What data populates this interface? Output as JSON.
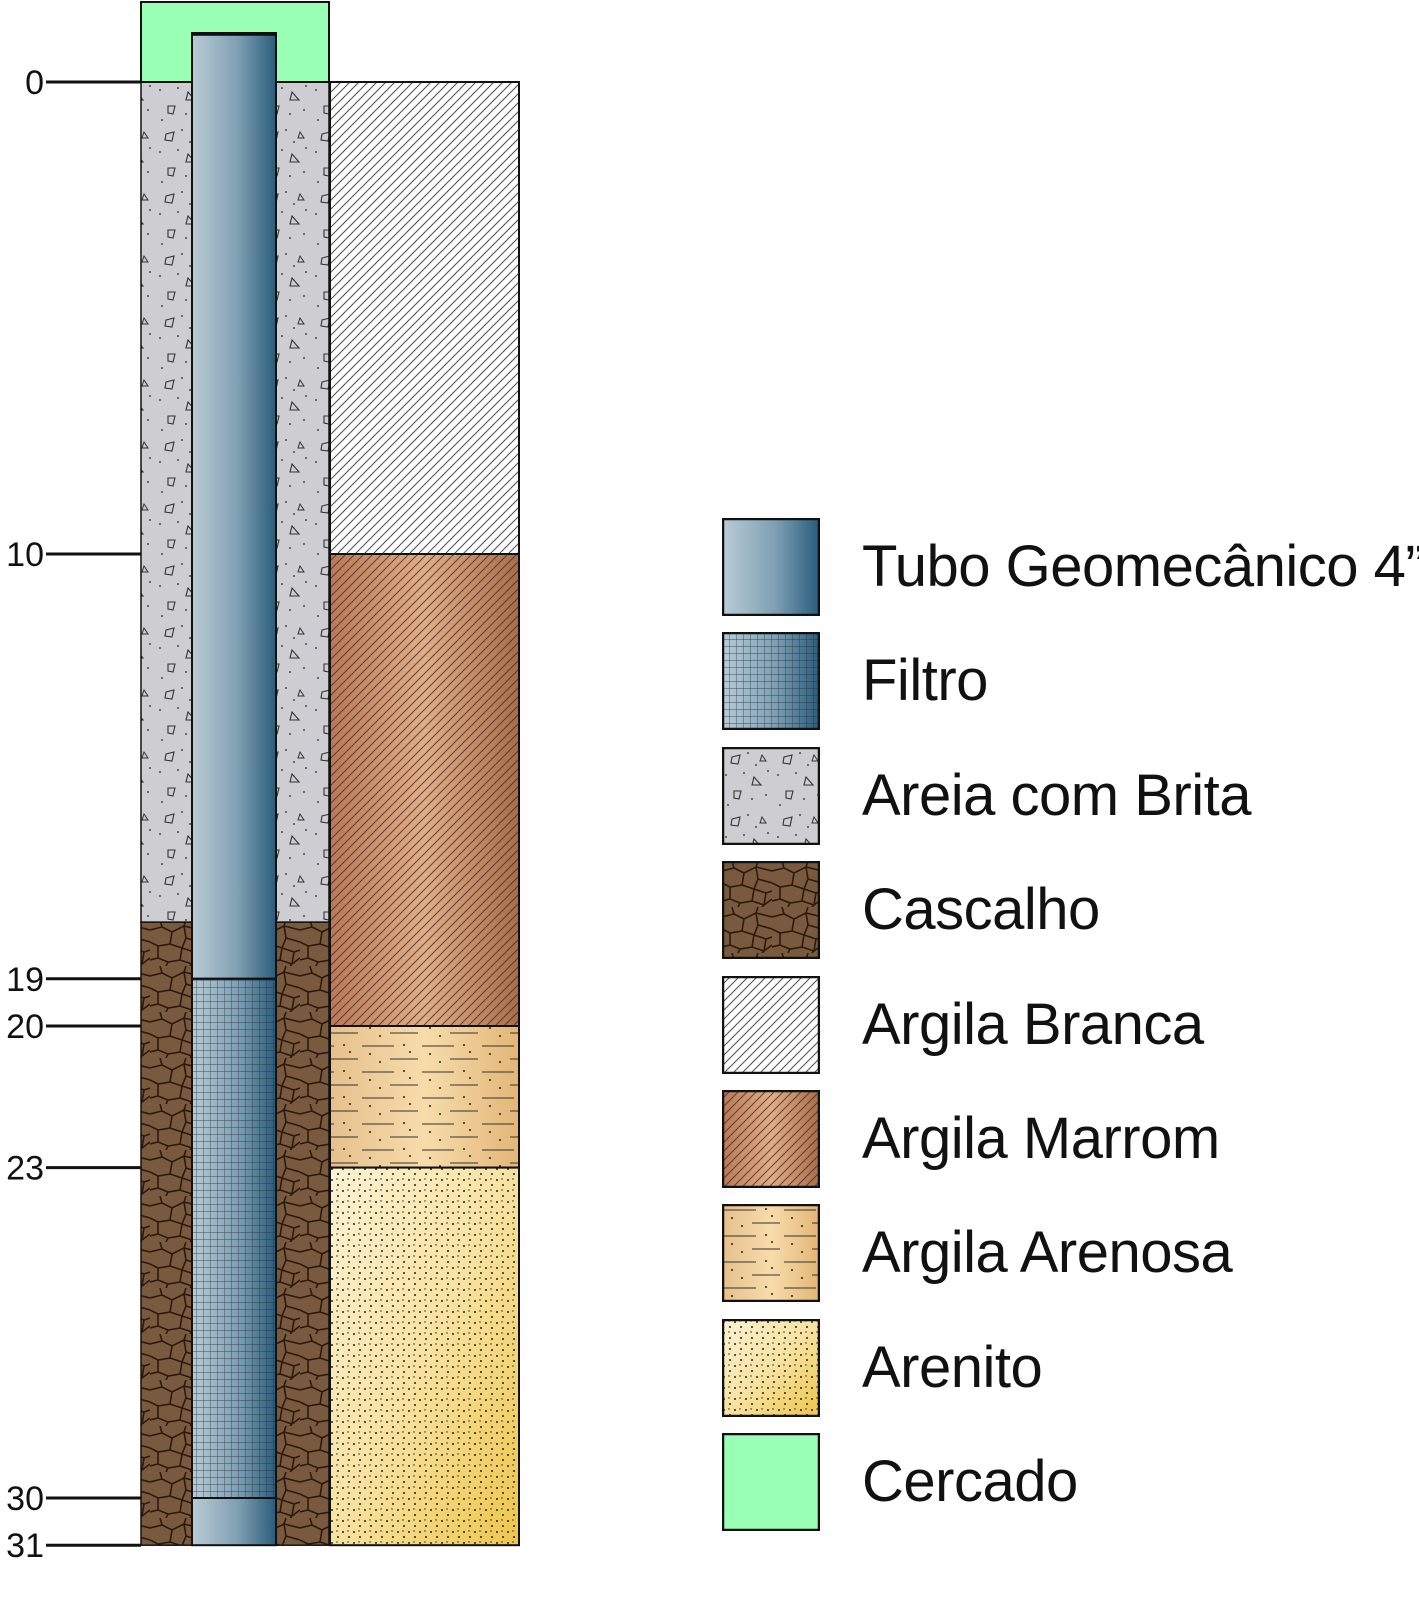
{
  "well_profile": {
    "depth_ticks": [
      {
        "label": "0",
        "depth": 0
      },
      {
        "label": "10",
        "depth": 10
      },
      {
        "label": "19",
        "depth": 19
      },
      {
        "label": "20",
        "depth": 20
      },
      {
        "label": "23",
        "depth": 23
      },
      {
        "label": "30",
        "depth": 30
      },
      {
        "label": "31",
        "depth": 31
      }
    ],
    "annulus_fill": [
      {
        "material": "Areia com Brita",
        "from": 0,
        "to": 17.8
      },
      {
        "material": "Cascalho",
        "from": 17.8,
        "to": 31
      }
    ],
    "pipe": [
      {
        "material": "Tubo Geomecânico 4”",
        "from": -1,
        "to": 19
      },
      {
        "material": "Filtro",
        "from": 19,
        "to": 30
      },
      {
        "material": "Tubo Geomecânico 4”",
        "from": 30,
        "to": 31
      }
    ],
    "lithology": [
      {
        "material": "Argila Branca",
        "from": 0,
        "to": 10
      },
      {
        "material": "Argila Marrom",
        "from": 10,
        "to": 20
      },
      {
        "material": "Argila Arenosa",
        "from": 20,
        "to": 23
      },
      {
        "material": "Arenito",
        "from": 23,
        "to": 31
      }
    ],
    "cap": {
      "material": "Cercado"
    }
  },
  "legend": {
    "items": [
      {
        "key": "tubo",
        "label": "Tubo Geomecânico 4”"
      },
      {
        "key": "filtro",
        "label": "Filtro"
      },
      {
        "key": "areia",
        "label": "Areia com Brita"
      },
      {
        "key": "cascalho",
        "label": "Cascalho"
      },
      {
        "key": "argila-branca",
        "label": "Argila Branca"
      },
      {
        "key": "argila-marrom",
        "label": "Argila Marrom"
      },
      {
        "key": "argila-arenosa",
        "label": "Argila Arenosa"
      },
      {
        "key": "arenito",
        "label": "Arenito"
      },
      {
        "key": "cercado",
        "label": "Cercado"
      }
    ]
  },
  "colors": {
    "tubo_light": "#b9cbd5",
    "tubo_dark": "#2a5c7a",
    "areia": "#cdcdd2",
    "cascalho": "#7a5a3e",
    "cascalho_line": "#2b1a0e",
    "argila_branca": "#ffffff",
    "argila_marrom_light": "#deaa84",
    "argila_marrom_dark": "#a66e4c",
    "argila_arenosa_light": "#f7dcaa",
    "argila_arenosa_dark": "#e0b57a",
    "arenito_light": "#fdf1cc",
    "arenito_dark": "#efca52",
    "cercado": "#99ffb4"
  }
}
